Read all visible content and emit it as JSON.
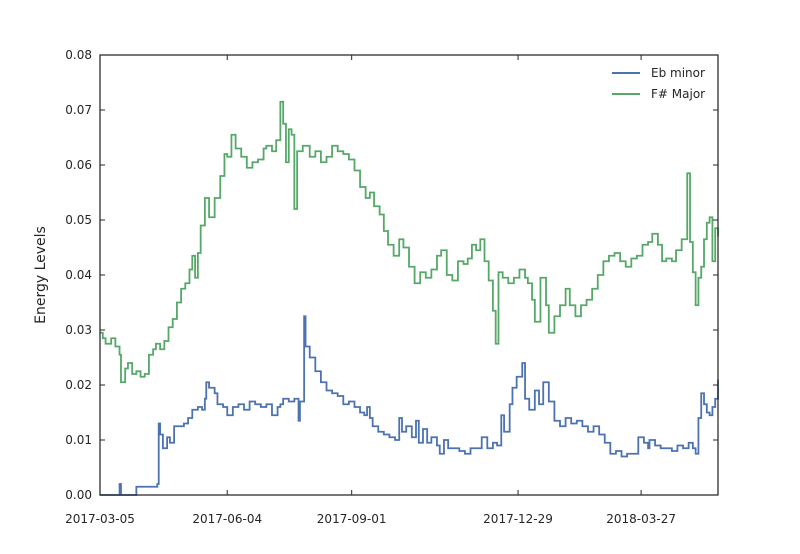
{
  "chart_data": {
    "type": "line",
    "title": "",
    "xlabel": "",
    "ylabel": "Energy Levels",
    "x_axis_type": "date",
    "xlim": [
      "2017-03-05",
      "2018-05-21"
    ],
    "ylim": [
      0,
      0.08
    ],
    "x_ticks": [
      "2017-03-05",
      "2017-06-04",
      "2017-09-01",
      "2017-12-29",
      "2018-03-27"
    ],
    "y_ticks": [
      "0.00",
      "0.01",
      "0.02",
      "0.03",
      "0.04",
      "0.05",
      "0.06",
      "0.07",
      "0.08"
    ],
    "grid": false,
    "legend_position": "top-right",
    "line_style": "steps",
    "series": [
      {
        "name": "Eb minor",
        "color": "#4c72b0",
        "points": [
          [
            "2017-03-05",
            0.0
          ],
          [
            "2017-03-18",
            0.0
          ],
          [
            "2017-03-19",
            0.002
          ],
          [
            "2017-03-20",
            0.0
          ],
          [
            "2017-03-30",
            0.0
          ],
          [
            "2017-03-31",
            0.0015
          ],
          [
            "2017-04-15",
            0.002
          ],
          [
            "2017-04-16",
            0.013
          ],
          [
            "2017-04-17",
            0.011
          ],
          [
            "2017-04-19",
            0.0085
          ],
          [
            "2017-04-22",
            0.0105
          ],
          [
            "2017-04-24",
            0.0095
          ],
          [
            "2017-04-27",
            0.0125
          ],
          [
            "2017-05-01",
            0.0125
          ],
          [
            "2017-05-04",
            0.013
          ],
          [
            "2017-05-07",
            0.014
          ],
          [
            "2017-05-10",
            0.0155
          ],
          [
            "2017-05-14",
            0.016
          ],
          [
            "2017-05-17",
            0.0155
          ],
          [
            "2017-05-19",
            0.0175
          ],
          [
            "2017-05-20",
            0.0205
          ],
          [
            "2017-05-22",
            0.0195
          ],
          [
            "2017-05-26",
            0.0185
          ],
          [
            "2017-05-28",
            0.0165
          ],
          [
            "2017-06-01",
            0.016
          ],
          [
            "2017-06-04",
            0.0145
          ],
          [
            "2017-06-08",
            0.016
          ],
          [
            "2017-06-12",
            0.0165
          ],
          [
            "2017-06-16",
            0.0155
          ],
          [
            "2017-06-20",
            0.017
          ],
          [
            "2017-06-24",
            0.0165
          ],
          [
            "2017-06-28",
            0.016
          ],
          [
            "2017-07-02",
            0.0165
          ],
          [
            "2017-07-06",
            0.0145
          ],
          [
            "2017-07-10",
            0.016
          ],
          [
            "2017-07-12",
            0.0165
          ],
          [
            "2017-07-14",
            0.0175
          ],
          [
            "2017-07-18",
            0.017
          ],
          [
            "2017-07-22",
            0.0175
          ],
          [
            "2017-07-25",
            0.0135
          ],
          [
            "2017-07-26",
            0.017
          ],
          [
            "2017-07-29",
            0.0325
          ],
          [
            "2017-07-30",
            0.027
          ],
          [
            "2017-08-02",
            0.025
          ],
          [
            "2017-08-06",
            0.0225
          ],
          [
            "2017-08-10",
            0.0205
          ],
          [
            "2017-08-14",
            0.019
          ],
          [
            "2017-08-18",
            0.0185
          ],
          [
            "2017-08-22",
            0.018
          ],
          [
            "2017-08-26",
            0.0165
          ],
          [
            "2017-08-30",
            0.017
          ],
          [
            "2017-09-03",
            0.016
          ],
          [
            "2017-09-07",
            0.015
          ],
          [
            "2017-09-10",
            0.0145
          ],
          [
            "2017-09-12",
            0.016
          ],
          [
            "2017-09-14",
            0.014
          ],
          [
            "2017-09-16",
            0.0125
          ],
          [
            "2017-09-20",
            0.0115
          ],
          [
            "2017-09-24",
            0.011
          ],
          [
            "2017-09-28",
            0.0105
          ],
          [
            "2017-10-02",
            0.01
          ],
          [
            "2017-10-05",
            0.014
          ],
          [
            "2017-10-07",
            0.0115
          ],
          [
            "2017-10-10",
            0.0125
          ],
          [
            "2017-10-14",
            0.0105
          ],
          [
            "2017-10-17",
            0.0135
          ],
          [
            "2017-10-19",
            0.0095
          ],
          [
            "2017-10-22",
            0.012
          ],
          [
            "2017-10-25",
            0.0095
          ],
          [
            "2017-10-28",
            0.0105
          ],
          [
            "2017-11-01",
            0.009
          ],
          [
            "2017-11-03",
            0.0075
          ],
          [
            "2017-11-06",
            0.01
          ],
          [
            "2017-11-09",
            0.0085
          ],
          [
            "2017-11-13",
            0.0085
          ],
          [
            "2017-11-17",
            0.008
          ],
          [
            "2017-11-21",
            0.0075
          ],
          [
            "2017-11-25",
            0.0085
          ],
          [
            "2017-11-29",
            0.0085
          ],
          [
            "2017-12-03",
            0.0105
          ],
          [
            "2017-12-07",
            0.0085
          ],
          [
            "2017-12-11",
            0.0095
          ],
          [
            "2017-12-14",
            0.009
          ],
          [
            "2017-12-17",
            0.0145
          ],
          [
            "2017-12-19",
            0.0115
          ],
          [
            "2017-12-23",
            0.0165
          ],
          [
            "2017-12-25",
            0.0195
          ],
          [
            "2017-12-28",
            0.0215
          ],
          [
            "2018-01-01",
            0.024
          ],
          [
            "2018-01-03",
            0.0175
          ],
          [
            "2018-01-06",
            0.0155
          ],
          [
            "2018-01-10",
            0.019
          ],
          [
            "2018-01-13",
            0.0165
          ],
          [
            "2018-01-16",
            0.0205
          ],
          [
            "2018-01-20",
            0.017
          ],
          [
            "2018-01-24",
            0.0135
          ],
          [
            "2018-01-28",
            0.0125
          ],
          [
            "2018-02-01",
            0.014
          ],
          [
            "2018-02-05",
            0.013
          ],
          [
            "2018-02-09",
            0.0135
          ],
          [
            "2018-02-13",
            0.0125
          ],
          [
            "2018-02-17",
            0.0115
          ],
          [
            "2018-02-21",
            0.0125
          ],
          [
            "2018-02-25",
            0.011
          ],
          [
            "2018-03-01",
            0.0095
          ],
          [
            "2018-03-05",
            0.0075
          ],
          [
            "2018-03-09",
            0.008
          ],
          [
            "2018-03-13",
            0.007
          ],
          [
            "2018-03-17",
            0.0075
          ],
          [
            "2018-03-21",
            0.0075
          ],
          [
            "2018-03-25",
            0.0105
          ],
          [
            "2018-03-29",
            0.0095
          ],
          [
            "2018-04-01",
            0.0085
          ],
          [
            "2018-04-02",
            0.01
          ],
          [
            "2018-04-06",
            0.009
          ],
          [
            "2018-04-10",
            0.0085
          ],
          [
            "2018-04-14",
            0.0085
          ],
          [
            "2018-04-18",
            0.008
          ],
          [
            "2018-04-22",
            0.009
          ],
          [
            "2018-04-26",
            0.0085
          ],
          [
            "2018-04-30",
            0.0095
          ],
          [
            "2018-05-01",
            0.0095
          ],
          [
            "2018-05-03",
            0.0085
          ],
          [
            "2018-05-05",
            0.0075
          ],
          [
            "2018-05-07",
            0.014
          ],
          [
            "2018-05-09",
            0.0185
          ],
          [
            "2018-05-11",
            0.0165
          ],
          [
            "2018-05-13",
            0.015
          ],
          [
            "2018-05-15",
            0.0145
          ],
          [
            "2018-05-17",
            0.016
          ],
          [
            "2018-05-19",
            0.0175
          ],
          [
            "2018-05-21",
            0.021
          ]
        ]
      },
      {
        "name": "F# Major",
        "color": "#55a868",
        "points": [
          [
            "2017-03-05",
            0.0295
          ],
          [
            "2017-03-07",
            0.0285
          ],
          [
            "2017-03-09",
            0.0275
          ],
          [
            "2017-03-13",
            0.0285
          ],
          [
            "2017-03-16",
            0.027
          ],
          [
            "2017-03-19",
            0.0255
          ],
          [
            "2017-03-20",
            0.0205
          ],
          [
            "2017-03-23",
            0.023
          ],
          [
            "2017-03-25",
            0.024
          ],
          [
            "2017-03-28",
            0.022
          ],
          [
            "2017-03-31",
            0.0225
          ],
          [
            "2017-04-03",
            0.0215
          ],
          [
            "2017-04-06",
            0.022
          ],
          [
            "2017-04-09",
            0.0255
          ],
          [
            "2017-04-12",
            0.0265
          ],
          [
            "2017-04-14",
            0.0275
          ],
          [
            "2017-04-17",
            0.0265
          ],
          [
            "2017-04-20",
            0.028
          ],
          [
            "2017-04-23",
            0.0305
          ],
          [
            "2017-04-26",
            0.032
          ],
          [
            "2017-04-29",
            0.035
          ],
          [
            "2017-05-02",
            0.0375
          ],
          [
            "2017-05-05",
            0.0385
          ],
          [
            "2017-05-08",
            0.041
          ],
          [
            "2017-05-10",
            0.0435
          ],
          [
            "2017-05-12",
            0.0395
          ],
          [
            "2017-05-14",
            0.044
          ],
          [
            "2017-05-16",
            0.049
          ],
          [
            "2017-05-19",
            0.054
          ],
          [
            "2017-05-22",
            0.0505
          ],
          [
            "2017-05-26",
            0.054
          ],
          [
            "2017-05-30",
            0.058
          ],
          [
            "2017-06-02",
            0.062
          ],
          [
            "2017-06-04",
            0.0615
          ],
          [
            "2017-06-07",
            0.0655
          ],
          [
            "2017-06-10",
            0.063
          ],
          [
            "2017-06-14",
            0.0615
          ],
          [
            "2017-06-18",
            0.0595
          ],
          [
            "2017-06-22",
            0.0605
          ],
          [
            "2017-06-26",
            0.061
          ],
          [
            "2017-06-30",
            0.063
          ],
          [
            "2017-07-02",
            0.0635
          ],
          [
            "2017-07-06",
            0.0625
          ],
          [
            "2017-07-09",
            0.0645
          ],
          [
            "2017-07-12",
            0.0715
          ],
          [
            "2017-07-14",
            0.0675
          ],
          [
            "2017-07-16",
            0.0605
          ],
          [
            "2017-07-18",
            0.0665
          ],
          [
            "2017-07-20",
            0.0655
          ],
          [
            "2017-07-22",
            0.052
          ],
          [
            "2017-07-24",
            0.0625
          ],
          [
            "2017-07-28",
            0.0635
          ],
          [
            "2017-08-02",
            0.0615
          ],
          [
            "2017-08-06",
            0.0625
          ],
          [
            "2017-08-10",
            0.0605
          ],
          [
            "2017-08-14",
            0.0615
          ],
          [
            "2017-08-18",
            0.0635
          ],
          [
            "2017-08-22",
            0.0625
          ],
          [
            "2017-08-26",
            0.062
          ],
          [
            "2017-08-30",
            0.061
          ],
          [
            "2017-09-03",
            0.059
          ],
          [
            "2017-09-07",
            0.056
          ],
          [
            "2017-09-11",
            0.054
          ],
          [
            "2017-09-14",
            0.055
          ],
          [
            "2017-09-17",
            0.0525
          ],
          [
            "2017-09-21",
            0.051
          ],
          [
            "2017-09-24",
            0.048
          ],
          [
            "2017-09-27",
            0.0455
          ],
          [
            "2017-10-01",
            0.0435
          ],
          [
            "2017-10-05",
            0.0465
          ],
          [
            "2017-10-08",
            0.045
          ],
          [
            "2017-10-12",
            0.0415
          ],
          [
            "2017-10-16",
            0.0385
          ],
          [
            "2017-10-20",
            0.0405
          ],
          [
            "2017-10-24",
            0.0395
          ],
          [
            "2017-10-28",
            0.041
          ],
          [
            "2017-11-01",
            0.0435
          ],
          [
            "2017-11-04",
            0.0445
          ],
          [
            "2017-11-08",
            0.04
          ],
          [
            "2017-11-12",
            0.039
          ],
          [
            "2017-11-16",
            0.0425
          ],
          [
            "2017-11-20",
            0.042
          ],
          [
            "2017-11-23",
            0.043
          ],
          [
            "2017-11-26",
            0.0455
          ],
          [
            "2017-11-29",
            0.0445
          ],
          [
            "2017-12-02",
            0.0465
          ],
          [
            "2017-12-05",
            0.0425
          ],
          [
            "2017-12-08",
            0.039
          ],
          [
            "2017-12-11",
            0.0335
          ],
          [
            "2017-12-13",
            0.0275
          ],
          [
            "2017-12-15",
            0.0405
          ],
          [
            "2017-12-18",
            0.0395
          ],
          [
            "2017-12-22",
            0.0385
          ],
          [
            "2017-12-26",
            0.0395
          ],
          [
            "2017-12-30",
            0.041
          ],
          [
            "2018-01-03",
            0.0395
          ],
          [
            "2018-01-05",
            0.0385
          ],
          [
            "2018-01-08",
            0.0355
          ],
          [
            "2018-01-10",
            0.0315
          ],
          [
            "2018-01-14",
            0.0395
          ],
          [
            "2018-01-18",
            0.0345
          ],
          [
            "2018-01-20",
            0.0295
          ],
          [
            "2018-01-24",
            0.0325
          ],
          [
            "2018-01-28",
            0.0345
          ],
          [
            "2018-02-01",
            0.0375
          ],
          [
            "2018-02-04",
            0.0345
          ],
          [
            "2018-02-08",
            0.0325
          ],
          [
            "2018-02-12",
            0.0345
          ],
          [
            "2018-02-16",
            0.0355
          ],
          [
            "2018-02-20",
            0.0375
          ],
          [
            "2018-02-24",
            0.04
          ],
          [
            "2018-02-28",
            0.0425
          ],
          [
            "2018-03-04",
            0.0435
          ],
          [
            "2018-03-08",
            0.044
          ],
          [
            "2018-03-12",
            0.0425
          ],
          [
            "2018-03-16",
            0.0415
          ],
          [
            "2018-03-20",
            0.043
          ],
          [
            "2018-03-24",
            0.0435
          ],
          [
            "2018-03-28",
            0.0455
          ],
          [
            "2018-04-01",
            0.046
          ],
          [
            "2018-04-04",
            0.0475
          ],
          [
            "2018-04-08",
            0.0455
          ],
          [
            "2018-04-11",
            0.0425
          ],
          [
            "2018-04-14",
            0.043
          ],
          [
            "2018-04-18",
            0.0425
          ],
          [
            "2018-04-21",
            0.0445
          ],
          [
            "2018-04-25",
            0.0465
          ],
          [
            "2018-04-29",
            0.0585
          ],
          [
            "2018-05-01",
            0.046
          ],
          [
            "2018-05-03",
            0.0405
          ],
          [
            "2018-05-05",
            0.0345
          ],
          [
            "2018-05-07",
            0.0395
          ],
          [
            "2018-05-09",
            0.0415
          ],
          [
            "2018-05-11",
            0.0465
          ],
          [
            "2018-05-13",
            0.0495
          ],
          [
            "2018-05-15",
            0.0505
          ],
          [
            "2018-05-17",
            0.0425
          ],
          [
            "2018-05-19",
            0.0485
          ],
          [
            "2018-05-21",
            0.047
          ]
        ]
      }
    ]
  }
}
